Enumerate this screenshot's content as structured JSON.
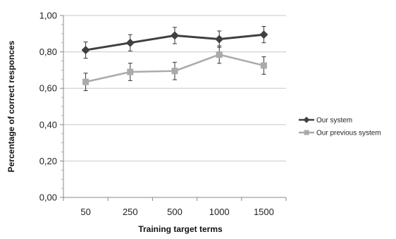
{
  "chart_data": {
    "type": "line",
    "categories": [
      "50",
      "250",
      "500",
      "1000",
      "1500"
    ],
    "series": [
      {
        "name": "Our system",
        "values": [
          0.81,
          0.85,
          0.89,
          0.87,
          0.895
        ],
        "errors": [
          0.045,
          0.045,
          0.045,
          0.045,
          0.045
        ],
        "color": "#404040",
        "marker": "diamond"
      },
      {
        "name": "Our previous system",
        "values": [
          0.635,
          0.69,
          0.695,
          0.785,
          0.725
        ],
        "errors": [
          0.048,
          0.048,
          0.048,
          0.048,
          0.048
        ],
        "color": "#aaaaaa",
        "marker": "square"
      }
    ],
    "ylim": [
      0,
      1
    ],
    "yticks": [
      "0,00",
      "0,20",
      "0,40",
      "0,60",
      "0,80",
      "1,00"
    ],
    "ytick_values": [
      0,
      0.2,
      0.4,
      0.6,
      0.8,
      1.0
    ],
    "xlabel": "Training target terms",
    "ylabel": "Percentage of correct responces",
    "grid": true,
    "legend_position": "right"
  }
}
